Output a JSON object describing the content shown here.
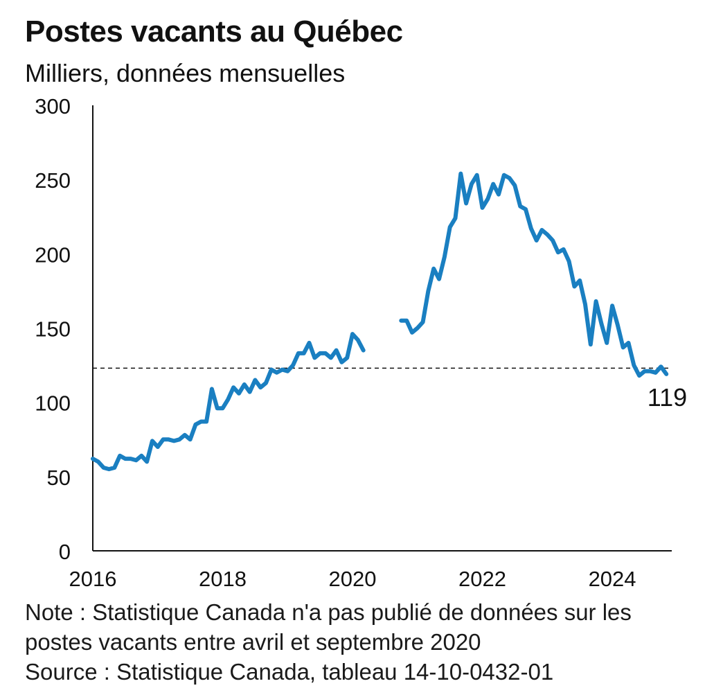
{
  "title": "Postes vacants au Québec",
  "subtitle": "Milliers, données mensuelles",
  "note_line1": "Note : Statistique Canada n'a pas publié de données sur les",
  "note_line2": "postes vacants entre avril et septembre 2020",
  "source": "Source : Statistique Canada, tableau 14-10-0432-01",
  "colors": {
    "line": "#1a7fc1",
    "text": "#111111",
    "axis": "#111111",
    "reference": "#111111"
  },
  "chart_data": {
    "type": "line",
    "title": "Postes vacants au Québec",
    "ylabel": "Milliers, données mensuelles",
    "xlabel": "",
    "x_ticks": [
      "2016",
      "2018",
      "2020",
      "2022",
      "2024"
    ],
    "y_ticks": [
      "0",
      "50",
      "100",
      "150",
      "200",
      "250",
      "300"
    ],
    "xlim": [
      "2016-01",
      "2024-12"
    ],
    "ylim": [
      0,
      300
    ],
    "reference_line": {
      "y": 123,
      "style": "dashed"
    },
    "end_label": "119",
    "grid": false,
    "series": [
      {
        "gap": "2020-04 à 2020-09",
        "points": [
          [
            "2016-01",
            62
          ],
          [
            "2016-02",
            60
          ],
          [
            "2016-03",
            56
          ],
          [
            "2016-04",
            55
          ],
          [
            "2016-05",
            56
          ],
          [
            "2016-06",
            64
          ],
          [
            "2016-07",
            62
          ],
          [
            "2016-08",
            62
          ],
          [
            "2016-09",
            61
          ],
          [
            "2016-10",
            64
          ],
          [
            "2016-11",
            60
          ],
          [
            "2016-12",
            74
          ],
          [
            "2017-01",
            70
          ],
          [
            "2017-02",
            75
          ],
          [
            "2017-03",
            75
          ],
          [
            "2017-04",
            74
          ],
          [
            "2017-05",
            75
          ],
          [
            "2017-06",
            78
          ],
          [
            "2017-07",
            75
          ],
          [
            "2017-08",
            85
          ],
          [
            "2017-09",
            87
          ],
          [
            "2017-10",
            87
          ],
          [
            "2017-11",
            109
          ],
          [
            "2017-12",
            96
          ],
          [
            "2018-01",
            96
          ],
          [
            "2018-02",
            102
          ],
          [
            "2018-03",
            110
          ],
          [
            "2018-04",
            106
          ],
          [
            "2018-05",
            112
          ],
          [
            "2018-06",
            107
          ],
          [
            "2018-07",
            115
          ],
          [
            "2018-08",
            110
          ],
          [
            "2018-09",
            113
          ],
          [
            "2018-10",
            122
          ],
          [
            "2018-11",
            120
          ],
          [
            "2018-12",
            122
          ],
          [
            "2019-01",
            121
          ],
          [
            "2019-02",
            125
          ],
          [
            "2019-03",
            133
          ],
          [
            "2019-04",
            133
          ],
          [
            "2019-05",
            140
          ],
          [
            "2019-06",
            130
          ],
          [
            "2019-07",
            133
          ],
          [
            "2019-08",
            133
          ],
          [
            "2019-09",
            130
          ],
          [
            "2019-10",
            135
          ],
          [
            "2019-11",
            127
          ],
          [
            "2019-12",
            130
          ],
          [
            "2020-01",
            146
          ],
          [
            "2020-02",
            142
          ],
          [
            "2020-03",
            135
          ],
          [
            "2020-04",
            null
          ],
          [
            "2020-05",
            null
          ],
          [
            "2020-06",
            null
          ],
          [
            "2020-07",
            null
          ],
          [
            "2020-08",
            null
          ],
          [
            "2020-09",
            null
          ],
          [
            "2020-10",
            155
          ],
          [
            "2020-11",
            155
          ],
          [
            "2020-12",
            147
          ],
          [
            "2021-01",
            150
          ],
          [
            "2021-02",
            154
          ],
          [
            "2021-03",
            175
          ],
          [
            "2021-04",
            190
          ],
          [
            "2021-05",
            183
          ],
          [
            "2021-06",
            198
          ],
          [
            "2021-07",
            218
          ],
          [
            "2021-08",
            224
          ],
          [
            "2021-09",
            254
          ],
          [
            "2021-10",
            234
          ],
          [
            "2021-11",
            247
          ],
          [
            "2021-12",
            253
          ],
          [
            "2022-01",
            231
          ],
          [
            "2022-02",
            237
          ],
          [
            "2022-03",
            247
          ],
          [
            "2022-04",
            240
          ],
          [
            "2022-05",
            253
          ],
          [
            "2022-06",
            251
          ],
          [
            "2022-07",
            246
          ],
          [
            "2022-08",
            232
          ],
          [
            "2022-09",
            230
          ],
          [
            "2022-10",
            217
          ],
          [
            "2022-11",
            209
          ],
          [
            "2022-12",
            216
          ],
          [
            "2023-01",
            213
          ],
          [
            "2023-02",
            209
          ],
          [
            "2023-03",
            201
          ],
          [
            "2023-04",
            203
          ],
          [
            "2023-05",
            195
          ],
          [
            "2023-06",
            178
          ],
          [
            "2023-07",
            182
          ],
          [
            "2023-08",
            166
          ],
          [
            "2023-09",
            139
          ],
          [
            "2023-10",
            168
          ],
          [
            "2023-11",
            153
          ],
          [
            "2023-12",
            140
          ],
          [
            "2024-01",
            165
          ],
          [
            "2024-02",
            152
          ],
          [
            "2024-03",
            137
          ],
          [
            "2024-04",
            140
          ],
          [
            "2024-05",
            125
          ],
          [
            "2024-06",
            118
          ],
          [
            "2024-07",
            121
          ],
          [
            "2024-08",
            121
          ],
          [
            "2024-09",
            120
          ],
          [
            "2024-10",
            124
          ],
          [
            "2024-11",
            119
          ]
        ]
      }
    ]
  }
}
